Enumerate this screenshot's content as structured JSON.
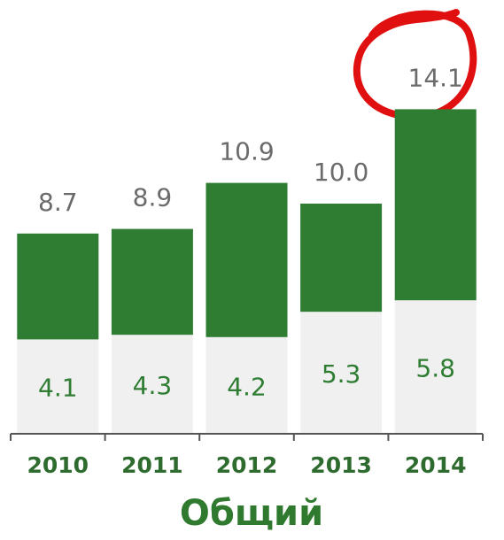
{
  "chart_data": {
    "type": "stacked-bar",
    "title": "Общий",
    "categories": [
      "2010",
      "2011",
      "2012",
      "2013",
      "2014"
    ],
    "series": [
      {
        "color": "#f0f0f0",
        "values": [
          4.1,
          4.3,
          4.2,
          5.3,
          5.8
        ]
      },
      {
        "color": "#2e7d32",
        "values": [
          4.6,
          4.6,
          6.7,
          4.7,
          8.3
        ]
      }
    ],
    "totals": [
      8.7,
      8.9,
      10.9,
      10.0,
      14.1
    ],
    "value_labels": {
      "totals": [
        "8.7",
        "8.9",
        "10.9",
        "10.0",
        "14.1"
      ]
    }
  }
}
